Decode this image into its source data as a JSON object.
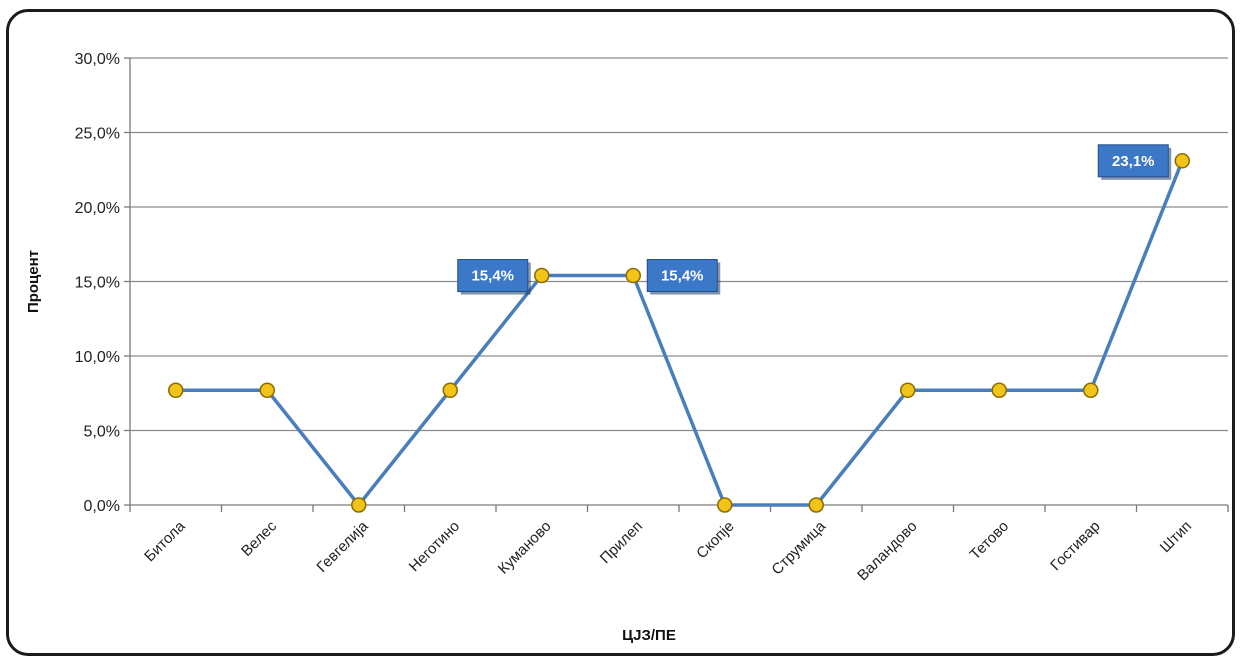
{
  "chart_data": {
    "type": "line",
    "categories": [
      "Битола",
      "Велес",
      "Гевгелија",
      "Неготино",
      "Куманово",
      "Прилеп",
      "Скопје",
      "Струмица",
      "Валандово",
      "Тетово",
      "Гостивар",
      "Штип"
    ],
    "series": [
      {
        "values": [
          7.7,
          7.7,
          0.0,
          7.7,
          15.4,
          15.4,
          0.0,
          0.0,
          7.7,
          7.7,
          7.7,
          23.1
        ]
      }
    ],
    "ylim": [
      0,
      30
    ],
    "yticks": [
      "0,0%",
      "5,0%",
      "10,0%",
      "15,0%",
      "20,0%",
      "25,0%",
      "30,0%"
    ],
    "ylabel": "Процент",
    "xlabel": "ЦЈЗ/ПЕ",
    "grid": true,
    "data_labels": [
      {
        "index": 4,
        "text": "15,4%",
        "side": "left"
      },
      {
        "index": 5,
        "text": "15,4%",
        "side": "right"
      },
      {
        "index": 11,
        "text": "23,1%",
        "side": "left"
      }
    ],
    "colors": {
      "line": "#4a7ebb",
      "marker_fill": "#f2c318",
      "marker_stroke": "#8a6d00",
      "grid": "#8c8c8c",
      "label_bg": "#3c78c8"
    }
  }
}
